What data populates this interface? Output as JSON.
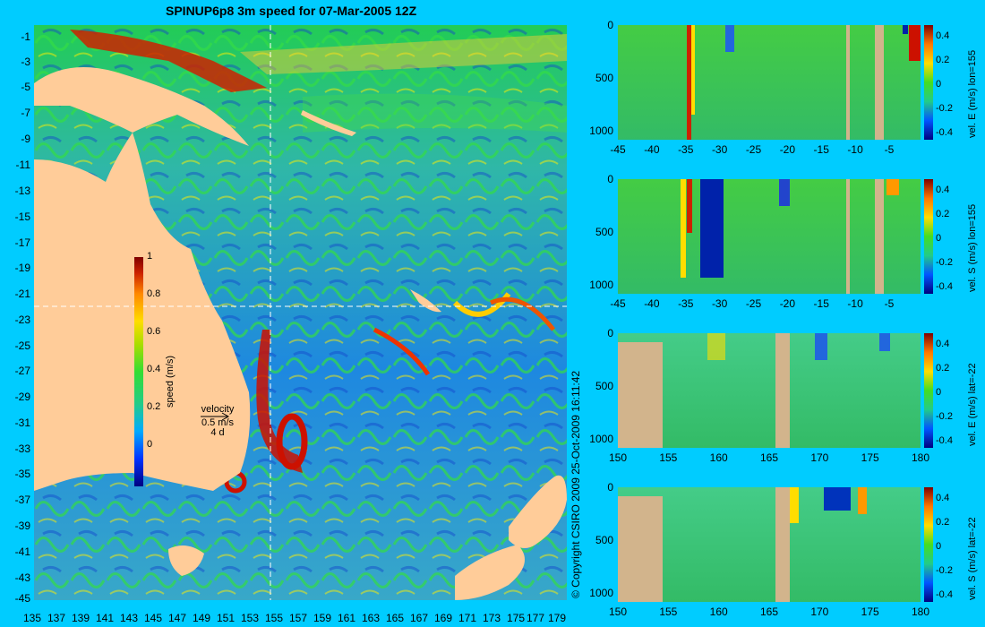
{
  "title": "SPINUP6p8 3m speed for 07-Mar-2005 12Z",
  "copyright": "© Copyright CSIRO 2009   25-Oct-2009 16:11:42",
  "map": {
    "lat_labels": [
      "-1",
      "-3",
      "-5",
      "-7",
      "-9",
      "-11",
      "-13",
      "-15",
      "-17",
      "-19",
      "-21",
      "-23",
      "-25",
      "-27",
      "-29",
      "-31",
      "-33",
      "-35",
      "-37",
      "-39",
      "-41",
      "-43",
      "-45"
    ],
    "lon_labels": [
      "135",
      "137",
      "139",
      "141",
      "143",
      "145",
      "147",
      "149",
      "151",
      "153",
      "155",
      "157",
      "159",
      "161",
      "163",
      "165",
      "167",
      "169",
      "171",
      "173",
      "175",
      "177",
      "179"
    ],
    "colorbar": {
      "label": "speed (m/s)",
      "ticks": [
        "1",
        "0.8",
        "0.6",
        "0.4",
        "0.2",
        "0"
      ]
    },
    "velocity_legend": {
      "title": "velocity",
      "speed": "0.5 m/s",
      "time": "4 d"
    },
    "colors": {
      "land": "#ffcc99",
      "background": "#00ccff"
    }
  },
  "panels": [
    {
      "name": "vel-e-lon155",
      "cb_label": "vel. E (m/s) lon=155",
      "x_ticks": [
        "-45",
        "-40",
        "-35",
        "-30",
        "-25",
        "-20",
        "-15",
        "-10",
        "-5"
      ],
      "y_ticks": [
        "0",
        "500",
        "1000"
      ],
      "cb_ticks": [
        "0.4",
        "0.2",
        "0",
        "-0.2",
        "-0.4"
      ]
    },
    {
      "name": "vel-s-lon155",
      "cb_label": "vel. S (m/s) lon=155",
      "x_ticks": [
        "-45",
        "-40",
        "-35",
        "-30",
        "-25",
        "-20",
        "-15",
        "-10",
        "-5"
      ],
      "y_ticks": [
        "0",
        "500",
        "1000"
      ],
      "cb_ticks": [
        "0.4",
        "0.2",
        "0",
        "-0.2",
        "-0.4"
      ]
    },
    {
      "name": "vel-e-lat22",
      "cb_label": "vel. E (m/s) lat=-22",
      "x_ticks": [
        "150",
        "155",
        "160",
        "165",
        "170",
        "175",
        "180"
      ],
      "y_ticks": [
        "0",
        "500",
        "1000"
      ],
      "cb_ticks": [
        "0.4",
        "0.2",
        "0",
        "-0.2",
        "-0.4"
      ]
    },
    {
      "name": "vel-s-lat22",
      "cb_label": "vel. S (m/s) lat=-22",
      "x_ticks": [
        "150",
        "155",
        "160",
        "165",
        "170",
        "175",
        "180"
      ],
      "y_ticks": [
        "0",
        "500",
        "1000"
      ],
      "cb_ticks": [
        "0.4",
        "0.2",
        "0",
        "-0.2",
        "-0.4"
      ]
    }
  ]
}
